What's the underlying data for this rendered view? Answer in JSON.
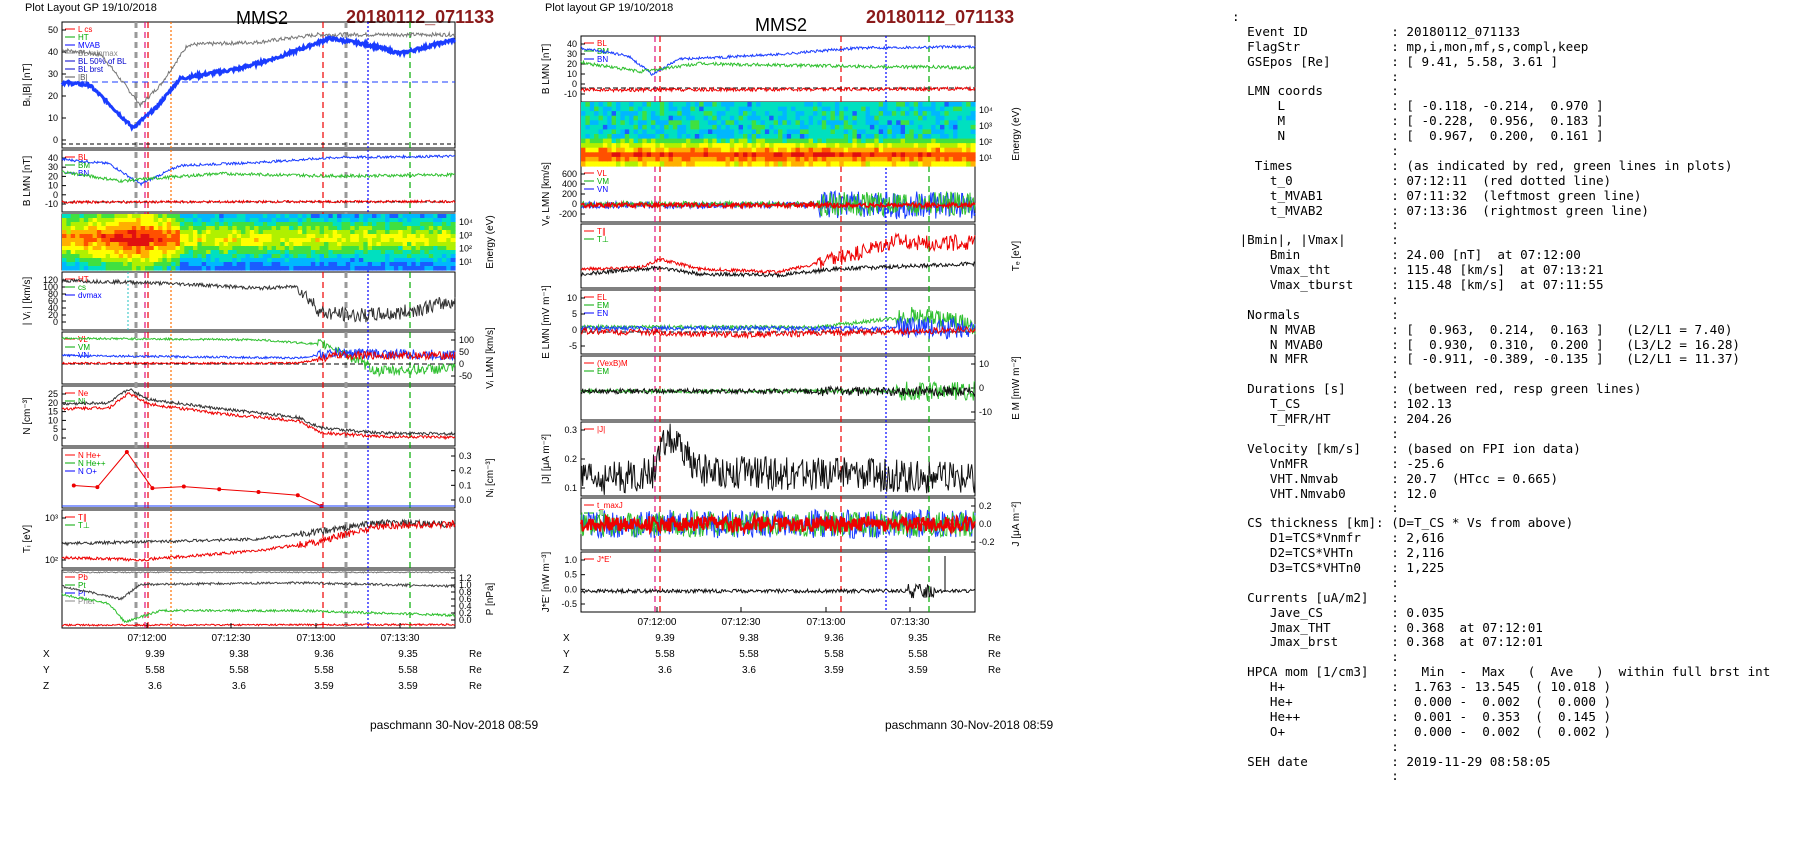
{
  "left": {
    "header": "Plot Layout GP 19/10/2018",
    "spacecraft": "MMS2",
    "event": "20180112_071133",
    "footer": "paschmann 30-Nov-2018 08:59",
    "panels": [
      {
        "ylabel": "Bₗ,|B| [nT]",
        "yticks": [
          "0",
          "10",
          "20",
          "30",
          "40",
          "50"
        ],
        "yright": [],
        "legend": [
          "L cs",
          "HT",
          "MVAB",
          "BL minmax",
          "BL 50% of BL",
          "BL brst",
          "|B|"
        ]
      },
      {
        "ylabel": "B LMN [nT]",
        "yticks": [
          "-10",
          "0",
          "10",
          "20",
          "30",
          "40"
        ],
        "yright": [],
        "legend": [
          "BL",
          "BM",
          "BN"
        ]
      },
      {
        "ylabel": "",
        "yticks": [],
        "yright": [
          "10⁴",
          "10³",
          "10²",
          "10¹"
        ],
        "yrightlabel": "Energy (eV)",
        "legend": []
      },
      {
        "ylabel": "| Vᵢ | [km/s]",
        "yticks": [
          "0",
          "20",
          "40",
          "60",
          "80",
          "100",
          "120"
        ],
        "yright": [],
        "legend": [
          "HT",
          "cs",
          "dvmax"
        ]
      },
      {
        "ylabel": "",
        "yticks": [],
        "yright": [
          "100",
          "50",
          "0",
          "-50"
        ],
        "yrightlabel": "Vᵢ LMN [km/s]",
        "legend": [
          "VL",
          "VM",
          "VN"
        ]
      },
      {
        "ylabel": "N [cm⁻³]",
        "yticks": [
          "0",
          "5",
          "10",
          "15",
          "20",
          "25"
        ],
        "yright": [],
        "legend": [
          "Ne",
          "Ni"
        ]
      },
      {
        "ylabel": "",
        "yticks": [],
        "yright": [
          "0.3",
          "0.2",
          "0.1",
          "0.0"
        ],
        "yrightlabel": "Nᵢ [cm⁻³]",
        "legend": [
          "N He+",
          "N He++",
          "N O+"
        ]
      },
      {
        "ylabel": "Tᵢ [eV]",
        "yticks": [
          "10²",
          "10³"
        ],
        "yright": [],
        "legend": [
          "T∥",
          "T⊥"
        ]
      },
      {
        "ylabel": "",
        "yticks": [],
        "yright": [
          "1.2",
          "1.0",
          "0.8",
          "0.6",
          "0.4",
          "0.2",
          "0.0"
        ],
        "yrightlabel": "P [nPa]",
        "legend": [
          "Pb",
          "Pt",
          "Pi",
          "Pnet"
        ]
      }
    ],
    "xticks": [
      "07:12:00",
      "07:12:30",
      "07:13:00",
      "07:13:30"
    ],
    "pos_rows": [
      {
        "lab": "X",
        "vals": [
          "9.39",
          "9.38",
          "9.36",
          "9.35"
        ],
        "unit": "Re"
      },
      {
        "lab": "Y",
        "vals": [
          "5.58",
          "5.58",
          "5.58",
          "5.58"
        ],
        "unit": "Re"
      },
      {
        "lab": "Z",
        "vals": [
          "3.6",
          "3.6",
          "3.59",
          "3.59"
        ],
        "unit": "Re"
      }
    ]
  },
  "right": {
    "header": "Plot layout GP 19/10/2018",
    "spacecraft": "MMS2",
    "event": "20180112_071133",
    "footer": "paschmann 30-Nov-2018 08:59",
    "panels": [
      {
        "ylabel": "B LMN [nT]",
        "yticks": [
          "-10",
          "0",
          "10",
          "20",
          "30",
          "40"
        ],
        "yright": [],
        "legend": [
          "BL",
          "BM",
          "BN"
        ]
      },
      {
        "ylabel": "",
        "yticks": [],
        "yright": [
          "10⁴",
          "10³",
          "10²",
          "10¹"
        ],
        "yrightlabel": "Energy (eV)",
        "legend": []
      },
      {
        "ylabel": "Vₑ LMN [km/s]",
        "yticks": [
          "-200",
          "0",
          "200",
          "400",
          "600"
        ],
        "yright": [],
        "legend": [
          "VL",
          "VM",
          "VN"
        ]
      },
      {
        "ylabel": "",
        "yticks": [],
        "yright": [],
        "yrightlabel": "Tₑ [eV]",
        "legend": [
          "T∥",
          "T⊥"
        ]
      },
      {
        "ylabel": "E LMN [mV m⁻¹]",
        "yticks": [
          "-5",
          "0",
          "5",
          "10"
        ],
        "yright": [],
        "legend": [
          "EL",
          "EM",
          "EN"
        ]
      },
      {
        "ylabel": "",
        "yticks": [],
        "yright": [
          "10",
          "0",
          "-10"
        ],
        "yrightlabel": "E M [mW m⁻²]",
        "legend": [
          "(VexB)M",
          "EM"
        ]
      },
      {
        "ylabel": "|J| [μA m⁻²]",
        "yticks": [
          "0.1",
          "0.2",
          "0.3"
        ],
        "yright": [],
        "legend": [
          "|J|"
        ]
      },
      {
        "ylabel": "",
        "yticks": [],
        "yright": [
          "0.2",
          "0.0",
          "-0.2"
        ],
        "yrightlabel": "J [μA m⁻²]",
        "legend": [
          "t_maxJ",
          "JL"
        ]
      },
      {
        "ylabel": "J*E' [nW m⁻³]",
        "yticks": [
          "-0.5",
          "0.0",
          "0.5",
          "1.0"
        ],
        "yright": [],
        "legend": [
          "J*E'"
        ]
      }
    ],
    "xticks": [
      "07:12:00",
      "07:12:30",
      "07:13:00",
      "07:13:30"
    ],
    "pos_rows": [
      {
        "lab": "X",
        "vals": [
          "9.39",
          "9.38",
          "9.36",
          "9.35"
        ],
        "unit": "Re"
      },
      {
        "lab": "Y",
        "vals": [
          "5.58",
          "5.58",
          "5.58",
          "5.58"
        ],
        "unit": "Re"
      },
      {
        "lab": "Z",
        "vals": [
          "3.6",
          "3.6",
          "3.59",
          "3.59"
        ],
        "unit": "Re"
      }
    ]
  },
  "info_lines": [
    ":",
    "  Event ID           : 20180112_071133",
    "  FlagStr            : mp,i,mon,mf,s,compl,keep",
    "  GSEpos [Re]        : [ 9.41, 5.58, 3.61 ]",
    "                     :",
    "  LMN coords         :",
    "      L              : [ -0.118, -0.214,  0.970 ]",
    "      M              : [ -0.228,  0.956,  0.183 ]",
    "      N              : [  0.967,  0.200,  0.161 ]",
    "                     :",
    "   Times             : (as indicated by red, green lines in plots)",
    "     t_0             : 07:12:11  (red dotted line)",
    "     t_MVAB1         : 07:11:32  (leftmost green line)",
    "     t_MVAB2         : 07:13:36  (rightmost green line)",
    "                     :",
    " |Bmin|, |Vmax|      :",
    "     Bmin            : 24.00 [nT]  at 07:12:00",
    "     Vmax_tht        : 115.48 [km/s]  at 07:13:21",
    "     Vmax_tburst     : 115.48 [km/s]  at 07:11:55",
    "                     :",
    "  Normals            :",
    "     N MVAB          : [  0.963,  0.214,  0.163 ]   (L2/L1 = 7.40)",
    "     N MVAB0         : [  0.930,  0.310,  0.200 ]   (L3/L2 = 16.28)",
    "     N MFR           : [ -0.911, -0.389, -0.135 ]   (L2/L1 = 11.37)",
    "                     :",
    "  Durations [s]      : (between red, resp green lines)",
    "     T_CS            : 102.13",
    "     T_MFR/HT        : 204.26",
    "                     :",
    "  Velocity [km/s]    : (based on FPI ion data)",
    "     VnMFR           : -25.6",
    "     VHT.Nmvab       : 20.7  (HTcc = 0.665)",
    "     VHT.Nmvab0      : 12.0",
    "                     :",
    "  CS thickness [km]: (D=T_CS * Vs from above)",
    "     D1=TCS*Vnmfr    : 2,616",
    "     D2=TCS*VHTn     : 2,116",
    "     D3=TCS*VHTn0    : 1,225",
    "                     :",
    "  Currents [uA/m2]   :",
    "     Jave_CS         : 0.035",
    "     Jmax_THT        : 0.368  at 07:12:01",
    "     Jmax_brst       : 0.368  at 07:12:01",
    "                     :",
    "  HPCA mom [1/cm3]   :   Min  -  Max   (  Ave   )  within full brst int",
    "     H+              :  1.763 - 13.545  ( 10.018 )",
    "     He+             :  0.000 -  0.002  (  0.000 )",
    "     He++            :  0.001 -  0.353  (  0.145 )",
    "     O+              :  0.000 -  0.002  (  0.002 )",
    "                     :",
    "  SEH date           : 2019-11-29 08:58:05",
    "                     :"
  ],
  "chart_data": [
    {
      "type": "line",
      "title": "MMS2 20180112_071133",
      "xlabel": "",
      "x_ticks": [
        "07:12:00",
        "07:12:30",
        "07:13:00",
        "07:13:30"
      ],
      "series": [
        {
          "name": "|B|",
          "ylim": [
            0,
            50
          ],
          "points": [
            [
              0,
              26
            ],
            [
              0.06,
              24
            ],
            [
              0.1,
              16
            ],
            [
              0.15,
              11
            ],
            [
              0.2,
              24
            ],
            [
              0.3,
              29
            ],
            [
              0.4,
              33
            ],
            [
              0.5,
              36
            ],
            [
              0.6,
              42
            ],
            [
              0.66,
              44
            ],
            [
              0.75,
              41
            ],
            [
              0.8,
              37
            ],
            [
              0.9,
              41
            ],
            [
              1,
              43
            ]
          ]
        },
        {
          "name": "BL brst",
          "ylim": [
            0,
            50
          ],
          "points": [
            [
              0,
              26
            ],
            [
              0.05,
              25
            ],
            [
              0.09,
              20
            ],
            [
              0.13,
              11
            ],
            [
              0.17,
              14
            ],
            [
              0.22,
              26
            ],
            [
              0.3,
              29
            ],
            [
              0.4,
              33
            ],
            [
              0.5,
              37
            ],
            [
              0.6,
              42
            ],
            [
              0.65,
              44
            ],
            [
              0.75,
              41
            ],
            [
              0.85,
              38
            ],
            [
              1,
              43
            ]
          ]
        },
        {
          "name": "Ne",
          "ylim": [
            0,
            25
          ],
          "points": [
            [
              0,
              18
            ],
            [
              0.1,
              19
            ],
            [
              0.15,
              23
            ],
            [
              0.2,
              19
            ],
            [
              0.3,
              16
            ],
            [
              0.4,
              15
            ],
            [
              0.5,
              13
            ],
            [
              0.6,
              8
            ],
            [
              0.66,
              6
            ],
            [
              0.8,
              4
            ],
            [
              1,
              3
            ]
          ]
        },
        {
          "name": "N He++",
          "ylim": [
            0,
            0.3
          ],
          "points": [
            [
              0.0,
              0.1
            ],
            [
              0.1,
              0.09
            ],
            [
              0.15,
              0.32
            ],
            [
              0.2,
              0.08
            ],
            [
              0.3,
              0.085
            ],
            [
              0.4,
              0.075
            ],
            [
              0.5,
              0.06
            ],
            [
              0.6,
              0.045
            ],
            [
              0.66,
              0.0
            ]
          ]
        }
      ]
    },
    {
      "type": "line",
      "title": "MMS2 20180112_071133",
      "xlabel": "",
      "x_ticks": [
        "07:12:00",
        "07:12:30",
        "07:13:00",
        "07:13:30"
      ],
      "series": [
        {
          "name": "BL",
          "ylim": [
            -10,
            45
          ],
          "points": [
            [
              0,
              40
            ],
            [
              0.1,
              35
            ],
            [
              0.17,
              14
            ],
            [
              0.25,
              28
            ],
            [
              0.4,
              34
            ],
            [
              0.6,
              38
            ],
            [
              0.8,
              40
            ],
            [
              1,
              42
            ]
          ]
        },
        {
          "name": "|J|",
          "ylim": [
            0,
            0.35
          ],
          "points": [
            [
              0,
              0.08
            ],
            [
              0.15,
              0.12
            ],
            [
              0.2,
              0.3
            ],
            [
              0.3,
              0.15
            ],
            [
              0.5,
              0.15
            ],
            [
              0.7,
              0.12
            ],
            [
              1,
              0.1
            ]
          ]
        }
      ]
    }
  ]
}
